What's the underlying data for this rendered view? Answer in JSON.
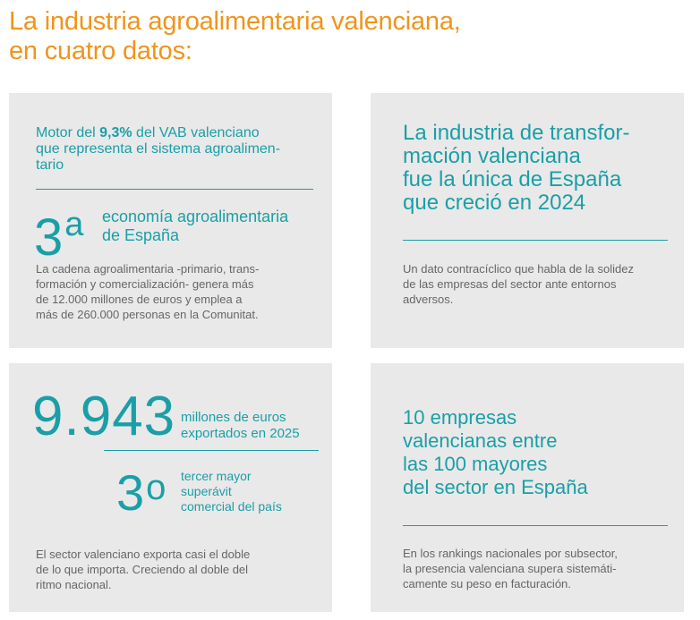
{
  "title": {
    "line1": "La industria agroalimentaria valenciana,",
    "line2": "en cuatro datos:"
  },
  "card1": {
    "motor_pre": "Motor del ",
    "motor_bold": "9,3%",
    "motor_l1_rest": " del VAB valenciano",
    "motor_l2": "que representa el sistema agroalimen-",
    "motor_l3": "tario",
    "rank_number": "3",
    "rank_suffix": "a",
    "rank_l1": "economía agroalimentaria",
    "rank_l2": "de España",
    "body": [
      "La cadena agroalimentaria -primario, trans-",
      "formación y comercialización- genera más",
      "de 12.000 millones de euros y emplea a",
      "más de 260.000 personas en la Comunitat."
    ]
  },
  "card2": {
    "heading": [
      "La industria de transfor-",
      "mación valenciana",
      "fue la única de España",
      "que creció en 2024"
    ],
    "body": [
      "Un dato contracíclico que habla de la solidez",
      "de las empresas del sector ante entornos",
      "adversos."
    ]
  },
  "card3": {
    "export_value": "9.943",
    "export_l1": "millones de euros",
    "export_l2": "exportados en 2025",
    "rank_number": "3",
    "rank_suffix": "o",
    "rank_l1": "tercer mayor",
    "rank_l2": "superávit",
    "rank_l3": "comercial del país",
    "body": [
      "El sector valenciano exporta casi el doble",
      "de lo que importa. Creciendo al doble del",
      "ritmo nacional."
    ]
  },
  "card4": {
    "heading": [
      "10 empresas",
      "valencianas entre",
      "las 100 mayores",
      "del sector en España"
    ],
    "body": [
      "En los rankings nacionales por subsector,",
      "la presencia valenciana supera sistemáti-",
      "camente su peso en facturación."
    ]
  },
  "colors": {
    "title_orange": "#f0941c",
    "accent_teal": "#1a9fa7",
    "card_bg": "#e9e9e9",
    "body_text": "#666666"
  }
}
